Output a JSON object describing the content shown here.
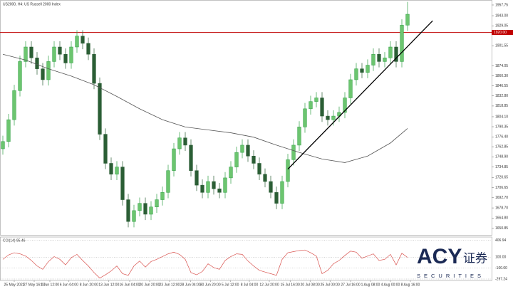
{
  "chart_data": {
    "type": "candlestick",
    "title": "US2000, H4: US Russell 2000 Index",
    "up_color": "#2f9e44",
    "down_color": "#2b5e35",
    "open": [
      1760,
      1770,
      1800,
      1840,
      1880,
      1900,
      1885,
      1870,
      1855,
      1880,
      1900,
      1890,
      1878,
      1900,
      1915,
      1905,
      1890,
      1850,
      1780,
      1740,
      1725,
      1735,
      1690,
      1660,
      1675,
      1685,
      1670,
      1680,
      1690,
      1700,
      1730,
      1760,
      1775,
      1765,
      1730,
      1710,
      1700,
      1715,
      1705,
      1700,
      1720,
      1735,
      1755,
      1765,
      1750,
      1740,
      1725,
      1715,
      1700,
      1685,
      1715,
      1745,
      1765,
      1790,
      1815,
      1825,
      1830,
      1805,
      1800,
      1805,
      1810,
      1830,
      1855,
      1870,
      1865,
      1875,
      1890,
      1880,
      1885,
      1900,
      1880,
      1930
    ],
    "high": [
      1778,
      1808,
      1848,
      1888,
      1908,
      1908,
      1893,
      1878,
      1888,
      1908,
      1908,
      1898,
      1908,
      1923,
      1923,
      1913,
      1898,
      1858,
      1788,
      1748,
      1743,
      1743,
      1698,
      1683,
      1693,
      1693,
      1688,
      1698,
      1708,
      1738,
      1768,
      1783,
      1783,
      1773,
      1738,
      1718,
      1723,
      1723,
      1713,
      1728,
      1743,
      1763,
      1773,
      1773,
      1758,
      1748,
      1733,
      1723,
      1708,
      1723,
      1753,
      1773,
      1798,
      1823,
      1833,
      1838,
      1838,
      1813,
      1813,
      1818,
      1838,
      1863,
      1878,
      1878,
      1883,
      1898,
      1898,
      1893,
      1908,
      1908,
      1938,
      1962
    ],
    "low": [
      1752,
      1762,
      1792,
      1832,
      1872,
      1877,
      1862,
      1847,
      1847,
      1872,
      1882,
      1870,
      1870,
      1892,
      1897,
      1882,
      1842,
      1772,
      1732,
      1717,
      1717,
      1682,
      1652,
      1652,
      1667,
      1662,
      1662,
      1672,
      1682,
      1692,
      1722,
      1752,
      1757,
      1722,
      1702,
      1692,
      1692,
      1697,
      1692,
      1692,
      1712,
      1727,
      1747,
      1742,
      1732,
      1717,
      1707,
      1692,
      1677,
      1677,
      1707,
      1737,
      1757,
      1782,
      1807,
      1817,
      1797,
      1792,
      1792,
      1797,
      1802,
      1822,
      1847,
      1857,
      1857,
      1867,
      1872,
      1872,
      1877,
      1872,
      1872,
      1922
    ],
    "close": [
      1770,
      1800,
      1840,
      1880,
      1900,
      1885,
      1870,
      1855,
      1880,
      1900,
      1890,
      1878,
      1900,
      1915,
      1905,
      1890,
      1850,
      1780,
      1740,
      1725,
      1735,
      1690,
      1660,
      1675,
      1685,
      1670,
      1680,
      1690,
      1700,
      1730,
      1760,
      1775,
      1765,
      1730,
      1710,
      1700,
      1715,
      1705,
      1700,
      1720,
      1735,
      1755,
      1765,
      1750,
      1740,
      1725,
      1715,
      1700,
      1685,
      1715,
      1745,
      1765,
      1790,
      1815,
      1825,
      1830,
      1805,
      1800,
      1805,
      1810,
      1830,
      1855,
      1870,
      1865,
      1875,
      1890,
      1880,
      1885,
      1900,
      1880,
      1930,
      1945
    ],
    "ma": {
      "color": "#555555",
      "x": [
        0,
        4,
        8,
        12,
        16,
        20,
        24,
        28,
        32,
        36,
        40,
        44,
        48,
        52,
        56,
        60,
        64,
        68,
        71
      ],
      "values": [
        1890,
        1882,
        1870,
        1860,
        1848,
        1832,
        1815,
        1800,
        1790,
        1786,
        1782,
        1776,
        1765,
        1755,
        1746,
        1741,
        1750,
        1768,
        1788
      ]
    },
    "trendline": {
      "color": "#000000",
      "x": [
        50,
        75.4
      ],
      "values": [
        1732,
        1936
      ]
    },
    "level": {
      "color": "#c00000",
      "value": 1920,
      "label": "1920.00"
    },
    "xlim": [
      -0.5,
      85.75
    ],
    "ylim": [
      1641.6,
      1964.6
    ],
    "yticks": [
      {
        "value": 1957.75,
        "label": "1957.75"
      },
      {
        "value": 1943,
        "label": "1943.00"
      },
      {
        "value": 1929.05,
        "label": "1929.05"
      },
      {
        "value": 1901.55,
        "label": "1901.55"
      },
      {
        "value": 1874.05,
        "label": "1874.05"
      },
      {
        "value": 1860.3,
        "label": "1860.30"
      },
      {
        "value": 1846.55,
        "label": "1846.55"
      },
      {
        "value": 1832.8,
        "label": "1832.80"
      },
      {
        "value": 1818.85,
        "label": "1818.85"
      },
      {
        "value": 1804.1,
        "label": "1804.10"
      },
      {
        "value": 1790.35,
        "label": "1790.35"
      },
      {
        "value": 1776.4,
        "label": "1776.40"
      },
      {
        "value": 1762.85,
        "label": "1762.85"
      },
      {
        "value": 1748.9,
        "label": "1748.90"
      },
      {
        "value": 1734.85,
        "label": "1734.85"
      },
      {
        "value": 1720.65,
        "label": "1720.65"
      },
      {
        "value": 1706.65,
        "label": "1706.65"
      },
      {
        "value": 1692.7,
        "label": "1692.70"
      },
      {
        "value": 1678.7,
        "label": "1678.70"
      },
      {
        "value": 1664.8,
        "label": "1664.80"
      },
      {
        "value": 1650.85,
        "label": "1650.85"
      }
    ],
    "xticks": [
      {
        "value": 2,
        "label": "25 May 2022"
      },
      {
        "value": 5.5,
        "label": "27 May 16:00"
      },
      {
        "value": 8.25,
        "label": "1 Jun 12:00"
      },
      {
        "value": 11.6,
        "label": "6 Jun 04:00"
      },
      {
        "value": 15.1,
        "label": "8 Jun 20:00"
      },
      {
        "value": 18.6,
        "label": "13 Jun 12:00"
      },
      {
        "value": 22.25,
        "label": "16 Jun 04:00"
      },
      {
        "value": 25.75,
        "label": "20 Jun 20:00"
      },
      {
        "value": 29.25,
        "label": "23 Jun 12:00"
      },
      {
        "value": 32.9,
        "label": "28 Jun 04:00"
      },
      {
        "value": 36.4,
        "label": "30 Jun 20:00"
      },
      {
        "value": 39.9,
        "label": "5 Jul 12:00"
      },
      {
        "value": 43.25,
        "label": "8 Jul 04:00"
      },
      {
        "value": 46.75,
        "label": "12 Jul 20:00"
      },
      {
        "value": 50.4,
        "label": "15 Jul 16:00"
      },
      {
        "value": 53.9,
        "label": "20 Jul 08:00"
      },
      {
        "value": 57.4,
        "label": "25 Jul 00:00"
      },
      {
        "value": 61,
        "label": "27 Jul 16:00"
      },
      {
        "value": 64.5,
        "label": "1 Aug 08:00"
      },
      {
        "value": 68,
        "label": "4 Aug 00:00"
      },
      {
        "value": 71.5,
        "label": "8 Aug 16:00"
      }
    ],
    "cci": {
      "label": "CCI(14) 95.46",
      "color": "#d9534f",
      "values": [
        60,
        140,
        180,
        160,
        120,
        40,
        -60,
        -120,
        20,
        110,
        60,
        -40,
        90,
        150,
        40,
        -60,
        -180,
        -280,
        -220,
        -150,
        -60,
        -200,
        -230,
        -60,
        30,
        -80,
        20,
        60,
        110,
        160,
        190,
        150,
        60,
        -180,
        -220,
        -160,
        -20,
        -90,
        -120,
        40,
        110,
        160,
        150,
        30,
        -60,
        -140,
        -170,
        -200,
        -230,
        60,
        180,
        200,
        220,
        230,
        180,
        120,
        -200,
        -140,
        -20,
        40,
        130,
        210,
        190,
        80,
        120,
        160,
        40,
        60,
        150,
        -40,
        170,
        95.46
      ],
      "ylim": [
        -323,
        465
      ],
      "yticks": [
        {
          "value": 406.94,
          "label": "406.94"
        },
        {
          "value": 100,
          "label": "100.00"
        },
        {
          "value": -100,
          "label": "-100.00"
        },
        {
          "value": -297.24,
          "label": "-297.24"
        }
      ]
    },
    "logo": {
      "main": "ACY",
      "cn": "证券",
      "sub": "SECURITIES"
    }
  }
}
